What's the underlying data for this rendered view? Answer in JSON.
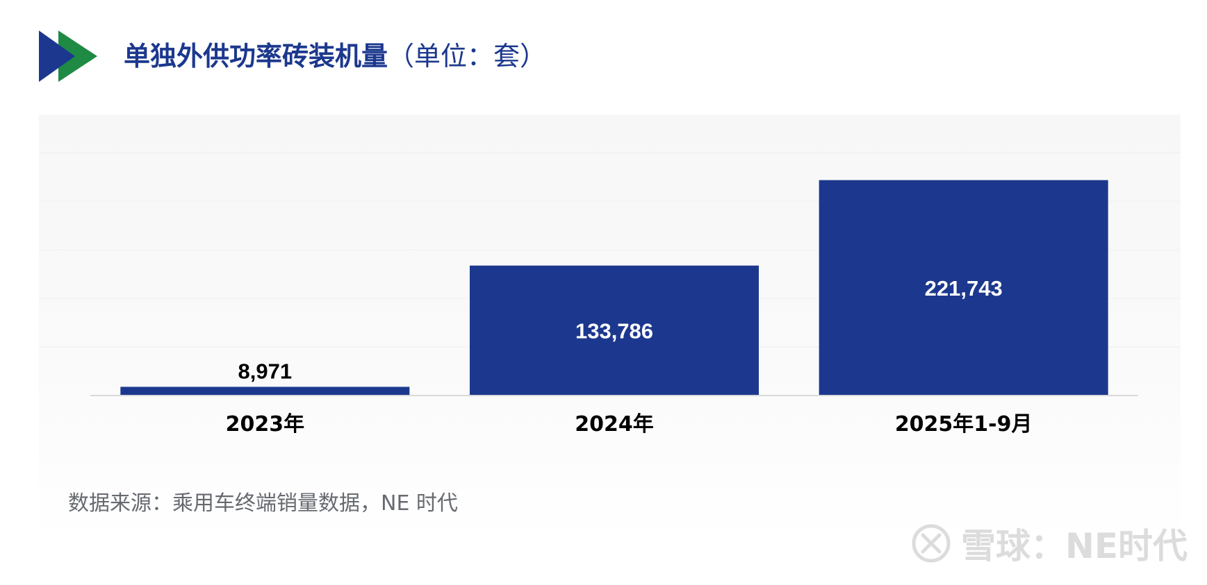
{
  "header": {
    "title": "单独外供功率砖装机量",
    "unit": "（单位：套）"
  },
  "colors": {
    "bar": "#1c388e",
    "title": "#1c388e",
    "logo_dark": "#1c388e",
    "logo_green": "#1f8a44",
    "label_outside": "#000000",
    "label_inside": "#ffffff"
  },
  "source": "数据来源：乘用车终端销量数据，NE 时代",
  "watermark": {
    "text": "雪球：NE时代",
    "icon": "xueqiu-logo-icon"
  },
  "chart_data": {
    "type": "bar",
    "categories": [
      "2023年",
      "2024年",
      "2025年1-9月"
    ],
    "values": [
      8971,
      133786,
      221743
    ],
    "value_labels": [
      "8,971",
      "133,786",
      "221,743"
    ],
    "title": "单独外供功率砖装机量（单位：套）",
    "xlabel": "",
    "ylabel": "",
    "ylim": [
      0,
      250000
    ],
    "grid": true,
    "y_axis_visible": false,
    "legend": "none",
    "data_label_position": "inside-center when fits, above otherwise"
  }
}
